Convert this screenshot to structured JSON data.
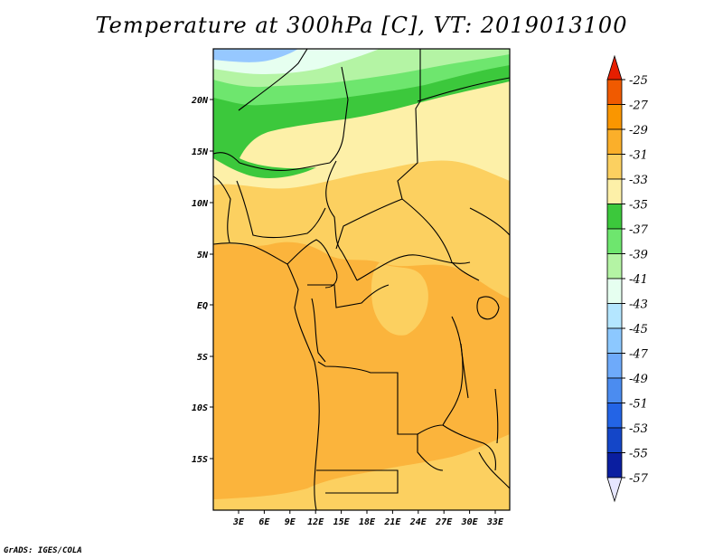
{
  "title": "Temperature at 300hPa [C], VT: 2019013100",
  "credit": "GrADS: IGES/COLA",
  "map": {
    "lat_ticks": [
      "20N",
      "15N",
      "10N",
      "5N",
      "EQ",
      "5S",
      "10S",
      "15S"
    ],
    "lon_ticks": [
      "3E",
      "6E",
      "9E",
      "12E",
      "15E",
      "18E",
      "21E",
      "24E",
      "27E",
      "30E",
      "33E"
    ]
  },
  "colorbar": {
    "labels": [
      "-25",
      "-27",
      "-29",
      "-31",
      "-33",
      "-35",
      "-37",
      "-39",
      "-41",
      "-43",
      "-45",
      "-47",
      "-49",
      "-51",
      "-53",
      "-55",
      "-57"
    ],
    "colors": [
      "#f05a00",
      "#fa9600",
      "#fbaf2a",
      "#fcd060",
      "#fdf0a8",
      "#3cc83c",
      "#6ee66e",
      "#b4f4a4",
      "#e6fff0",
      "#b4e6ff",
      "#8cc8ff",
      "#6eaafa",
      "#4b8cf0",
      "#2364e6",
      "#1446c8",
      "#0a1ea0"
    ],
    "over_color": "#e61e00",
    "under_color": "#e6e6ff"
  },
  "colors": {
    "warm": "#fbb43c",
    "mid": "#fcd060",
    "pale": "#fdf0a8",
    "green": "#3cc83c",
    "lightgreen": "#6ee66e",
    "palegreen": "#b4f4a4",
    "cyan": "#e6fff0",
    "blue": "#96c8ff"
  }
}
